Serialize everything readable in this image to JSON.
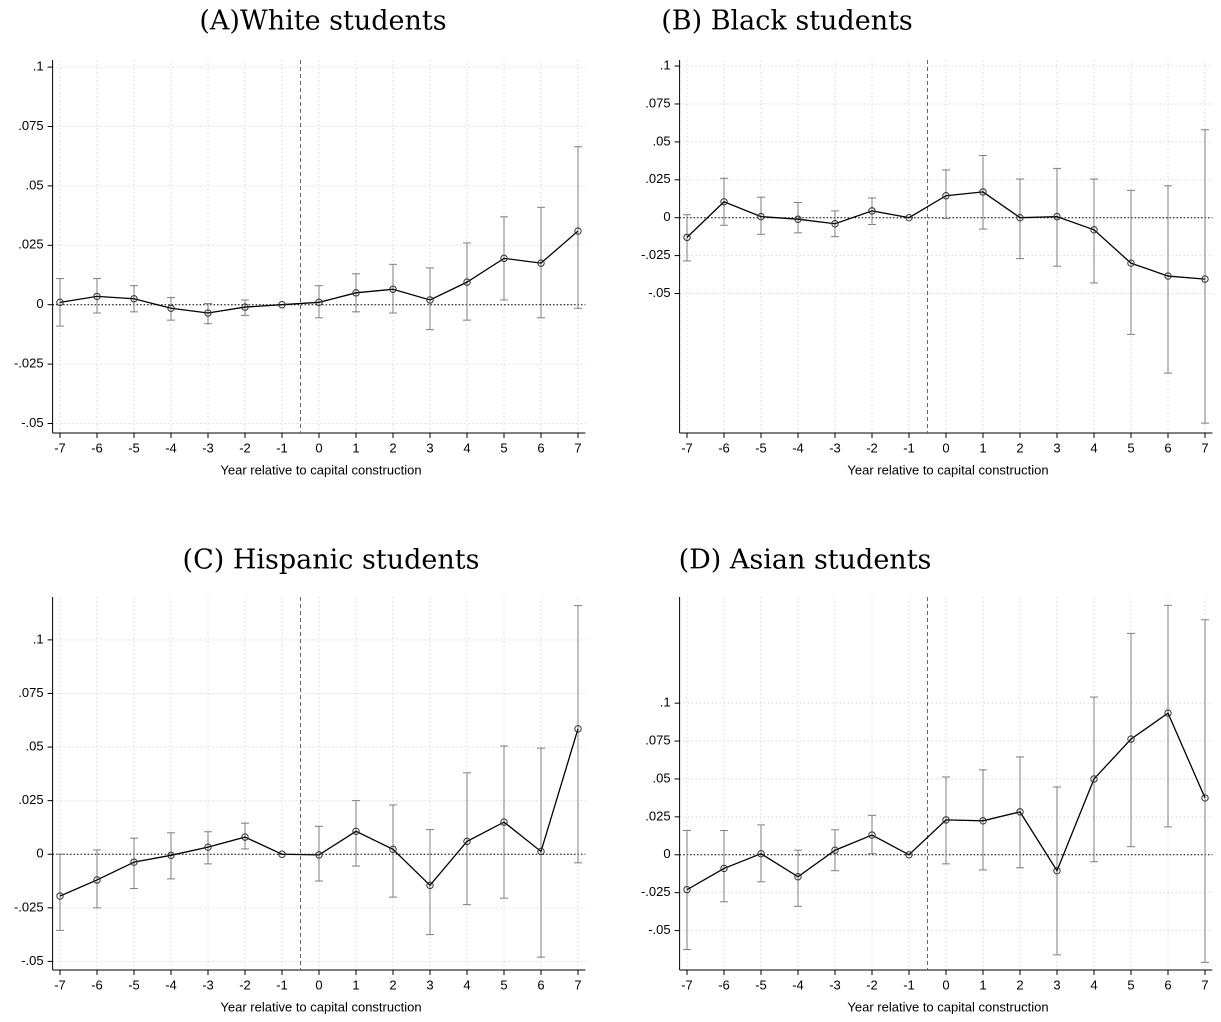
{
  "chart_data": [
    {
      "type": "line",
      "title": "(A)White students",
      "xlabel": "Year relative to capital construction",
      "x": [
        -7,
        -6,
        -5,
        -4,
        -3,
        -2,
        -1,
        0,
        1,
        2,
        3,
        4,
        5,
        6,
        7
      ],
      "values": [
        0.001,
        0.0035,
        0.0025,
        -0.0015,
        -0.0035,
        -0.001,
        0,
        0.001,
        0.005,
        0.0065,
        0.002,
        0.0095,
        0.0195,
        0.0175,
        0.031
      ],
      "lower": [
        -0.009,
        -0.0035,
        -0.003,
        -0.0065,
        -0.008,
        -0.0045,
        0,
        -0.0055,
        -0.003,
        -0.0035,
        -0.0105,
        -0.0065,
        0.002,
        -0.0055,
        -0.0015
      ],
      "upper": [
        0.011,
        0.011,
        0.008,
        0.003,
        0.0005,
        0.002,
        0,
        0.008,
        0.013,
        0.017,
        0.0155,
        0.026,
        0.037,
        0.041,
        0.0665
      ],
      "xlim": [
        -7.2,
        7.2
      ],
      "xticks": [
        -7,
        -6,
        -5,
        -4,
        -3,
        -2,
        -1,
        0,
        1,
        2,
        3,
        4,
        5,
        6,
        7
      ],
      "ylim": [
        -0.054,
        0.103
      ],
      "yticks": [
        {
          "value": -0.05,
          "label": "-.05"
        },
        {
          "value": -0.025,
          "label": "-.025"
        },
        0,
        {
          "value": 0.025,
          "label": ".025"
        },
        {
          "value": 0.05,
          "label": ".05"
        },
        {
          "value": 0.075,
          "label": ".075"
        },
        {
          "value": 0.1,
          "label": ".1"
        }
      ],
      "vline": -0.5,
      "hline": 0,
      "grid": true,
      "color": "#000000",
      "errorbar_color": "#7f7f7f"
    },
    {
      "type": "line",
      "title": "(B) Black students",
      "xlabel": "Year relative to capital construction",
      "x": [
        -7,
        -6,
        -5,
        -4,
        -3,
        -2,
        -1,
        0,
        1,
        2,
        3,
        4,
        5,
        6,
        7
      ],
      "values": [
        -0.013,
        0.0105,
        0.0007,
        -0.001,
        -0.004,
        0.0045,
        0,
        0.0145,
        0.017,
        0,
        0.0007,
        -0.008,
        -0.03,
        -0.0385,
        -0.0405
      ],
      "lower": [
        -0.0285,
        -0.005,
        -0.011,
        -0.01,
        -0.0125,
        -0.0045,
        0,
        -0.0005,
        -0.0075,
        -0.027,
        -0.032,
        -0.043,
        -0.077,
        -0.1025,
        -0.1355
      ],
      "upper": [
        0.002,
        0.026,
        0.0135,
        0.01,
        0.0045,
        0.013,
        0,
        0.0315,
        0.041,
        0.0255,
        0.0325,
        0.0255,
        0.018,
        0.021,
        0.058
      ],
      "xlim": [
        -7.2,
        7.2
      ],
      "xticks": [
        -7,
        -6,
        -5,
        -4,
        -3,
        -2,
        -1,
        0,
        1,
        2,
        3,
        4,
        5,
        6,
        7
      ],
      "ylim": [
        -0.142,
        0.104
      ],
      "yticks": [
        {
          "value": -0.05,
          "label": "-.05"
        },
        {
          "value": -0.025,
          "label": "-.025"
        },
        0,
        {
          "value": 0.025,
          "label": ".025"
        },
        {
          "value": 0.05,
          "label": ".05"
        },
        {
          "value": 0.075,
          "label": ".075"
        },
        {
          "value": 0.1,
          "label": ".1"
        }
      ],
      "vline": -0.5,
      "hline": 0,
      "grid": true,
      "color": "#000000",
      "errorbar_color": "#7f7f7f"
    },
    {
      "type": "line",
      "title": "(C) Hispanic students",
      "xlabel": "Year relative to capital construction",
      "x": [
        -7,
        -6,
        -5,
        -4,
        -3,
        -2,
        -1,
        0,
        1,
        2,
        3,
        4,
        5,
        6,
        7
      ],
      "values": [
        -0.0195,
        -0.012,
        -0.0037,
        -0.0005,
        0.0033,
        0.008,
        0,
        -0.0003,
        0.0107,
        0.0023,
        -0.0145,
        0.006,
        0.015,
        0.0013,
        0.0585
      ],
      "lower": [
        -0.0355,
        -0.025,
        -0.016,
        -0.0115,
        -0.0045,
        0.0025,
        0,
        -0.0125,
        -0.0055,
        -0.02,
        -0.0375,
        -0.0235,
        -0.0205,
        -0.048,
        -0.004
      ],
      "upper": [
        0,
        0.002,
        0.0075,
        0.01,
        0.0105,
        0.0145,
        0,
        0.013,
        0.025,
        0.023,
        0.0115,
        0.038,
        0.0505,
        0.0495,
        0.116
      ],
      "xlim": [
        -7.2,
        7.2
      ],
      "xticks": [
        -7,
        -6,
        -5,
        -4,
        -3,
        -2,
        -1,
        0,
        1,
        2,
        3,
        4,
        5,
        6,
        7
      ],
      "ylim": [
        -0.054,
        0.12
      ],
      "yticks": [
        {
          "value": -0.05,
          "label": "-.05"
        },
        {
          "value": -0.025,
          "label": "-.025"
        },
        0,
        {
          "value": 0.025,
          "label": ".025"
        },
        {
          "value": 0.05,
          "label": ".05"
        },
        {
          "value": 0.075,
          "label": ".075"
        },
        {
          "value": 0.1,
          "label": ".1"
        }
      ],
      "vline": -0.5,
      "hline": 0,
      "grid": true,
      "color": "#000000",
      "errorbar_color": "#7f7f7f"
    },
    {
      "type": "line",
      "title": "(D) Asian students",
      "xlabel": "Year relative to capital construction",
      "x": [
        -7,
        -6,
        -5,
        -4,
        -3,
        -2,
        -1,
        0,
        1,
        2,
        3,
        4,
        5,
        6,
        7
      ],
      "values": [
        -0.023,
        -0.009,
        0.0007,
        -0.0145,
        0.003,
        0.013,
        0,
        0.023,
        0.0224,
        0.0283,
        -0.0105,
        0.05,
        0.0763,
        0.0934,
        0.0375
      ],
      "lower": [
        -0.0625,
        -0.031,
        -0.0178,
        -0.034,
        -0.0105,
        0.0007,
        0,
        -0.006,
        -0.01,
        -0.0086,
        -0.066,
        -0.0046,
        0.0053,
        0.0184,
        -0.071
      ],
      "upper": [
        0.016,
        0.016,
        0.0197,
        0.003,
        0.0165,
        0.026,
        0,
        0.0513,
        0.056,
        0.0645,
        0.0447,
        0.104,
        0.146,
        0.1645,
        0.155
      ],
      "xlim": [
        -7.2,
        7.2
      ],
      "xticks": [
        -7,
        -6,
        -5,
        -4,
        -3,
        -2,
        -1,
        0,
        1,
        2,
        3,
        4,
        5,
        6,
        7
      ],
      "ylim": [
        -0.076,
        0.17
      ],
      "yticks": [
        {
          "value": -0.05,
          "label": "-.05"
        },
        {
          "value": -0.025,
          "label": "-.025"
        },
        0,
        {
          "value": 0.025,
          "label": ".025"
        },
        {
          "value": 0.05,
          "label": ".05"
        },
        {
          "value": 0.075,
          "label": ".075"
        },
        {
          "value": 0.1,
          "label": ".1"
        }
      ],
      "vline": -0.5,
      "hline": 0,
      "grid": true,
      "color": "#000000",
      "errorbar_color": "#7f7f7f"
    }
  ]
}
